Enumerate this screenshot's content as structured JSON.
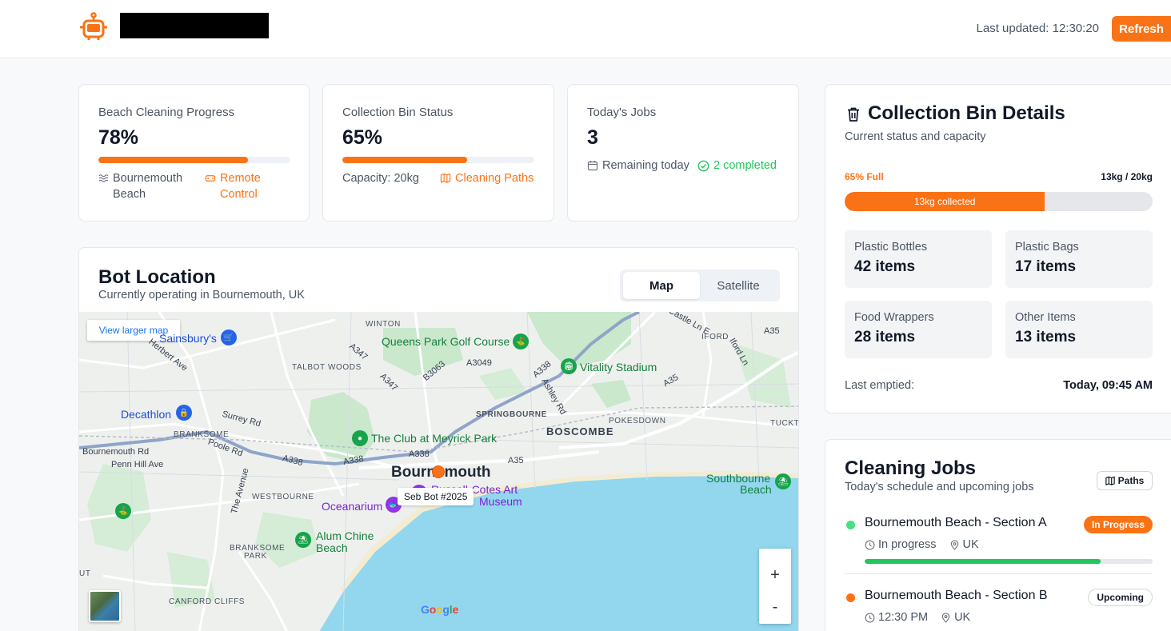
{
  "header": {
    "last_updated_label": "Last updated:",
    "last_updated_time": "12:30:20",
    "refresh_label": "Refresh",
    "logo_icon": "robot-icon"
  },
  "colors": {
    "accent": "#f97316",
    "success": "#22c55e",
    "text": "#111827",
    "muted": "#4b5563"
  },
  "stats": {
    "cleaning": {
      "title": "Beach Cleaning Progress",
      "value": "78%",
      "progress": 78,
      "location": "Bournemouth Beach",
      "location_icon": "waves-icon",
      "action": "Remote Control",
      "action_icon": "gamepad-icon"
    },
    "bin": {
      "title": "Collection Bin Status",
      "value": "65%",
      "progress": 65,
      "capacity": "Capacity: 20kg",
      "action": "Cleaning Paths",
      "action_icon": "map-icon"
    },
    "jobs": {
      "title": "Today's Jobs",
      "value": "3",
      "remaining": "Remaining today",
      "completed": "2 completed"
    }
  },
  "location": {
    "title": "Bot Location",
    "subtitle": "Currently operating in Bournemouth, UK",
    "toggle": {
      "map": "Map",
      "satellite": "Satellite",
      "selected": "Map"
    },
    "map": {
      "larger_map": "View larger map",
      "bot_label": "Seb Bot #2025",
      "zoom_in": "+",
      "zoom_out": "-",
      "attribution": "Google",
      "labels": {
        "winton": "WINTON",
        "queens_park": "Queens Park Golf Course",
        "sainsburys": "Sainsbury's",
        "herbert_ave": "Herbert Ave",
        "a347a": "A347",
        "a347b": "A347",
        "talbot_woods": "TALBOT WOODS",
        "b3063": "B3063",
        "a3049": "A3049",
        "a338a": "A338",
        "vitality": "Vitality Stadium",
        "castle_ln": "Castle Ln E",
        "iford": "IFORD",
        "iford_ln": "Iford Ln",
        "a35a": "A35",
        "a35b": "A35",
        "a35c": "A35",
        "ashley_rd": "Ashley Rd",
        "decathlon": "Decathlon",
        "surrey_rd": "Surrey Rd",
        "branksome": "BRANKSOME",
        "springbourne": "SPRINGBOURNE",
        "pokesdown": "POKESDOWN",
        "boscombe": "BOSCOMBE",
        "tuckton": "TUCKTO",
        "meyrick": "The Club at Meyrick Park",
        "bournemouth_rd": "Bournemouth Rd",
        "poole_rd": "Poole Rd",
        "penn_hill": "Penn Hill Ave",
        "a338b": "A338",
        "a338c": "A338",
        "a338d": "A338",
        "city": "Bournemouth",
        "russell_cotes": "Russell-Cotes Art",
        "museum": "Museum",
        "southbourne": "Southbourne",
        "southbourne_beach": "Beach",
        "westbourne": "WESTBOURNE",
        "the_avenue": "The Avenue",
        "oceanarium": "Oceanarium",
        "alum_chine": "Alum Chine",
        "alum_beach": "Beach",
        "branksome_park": "BRANKSOME",
        "branksome_park2": "PARK",
        "canford_cliffs": "CANFORD CLIFFS",
        "ut": "UT"
      }
    }
  },
  "bin_details": {
    "title": "Collection Bin Details",
    "subtitle": "Current status and capacity",
    "title_icon": "trash-icon",
    "full_label": "65% Full",
    "weight_label": "13kg / 20kg",
    "fill_percent": 65,
    "fill_text": "13kg collected",
    "items": [
      {
        "label": "Plastic Bottles",
        "value": "42 items"
      },
      {
        "label": "Plastic Bags",
        "value": "17 items"
      },
      {
        "label": "Food Wrappers",
        "value": "28 items"
      },
      {
        "label": "Other Items",
        "value": "13 items"
      }
    ],
    "last_emptied_label": "Last emptied:",
    "last_emptied_value": "Today, 09:45 AM"
  },
  "cleaning_jobs": {
    "title": "Cleaning Jobs",
    "subtitle": "Today's schedule and upcoming jobs",
    "paths_label": "Paths",
    "jobs": [
      {
        "name": "Bournemouth Beach - Section A",
        "status": "In Progress",
        "time": "In progress",
        "location": "UK",
        "progress": 0.82,
        "dot_color": "#4ade80"
      },
      {
        "name": "Bournemouth Beach - Section B",
        "status": "Upcoming",
        "time": "12:30 PM",
        "location": "UK",
        "dot_color": "#f97316"
      }
    ]
  }
}
